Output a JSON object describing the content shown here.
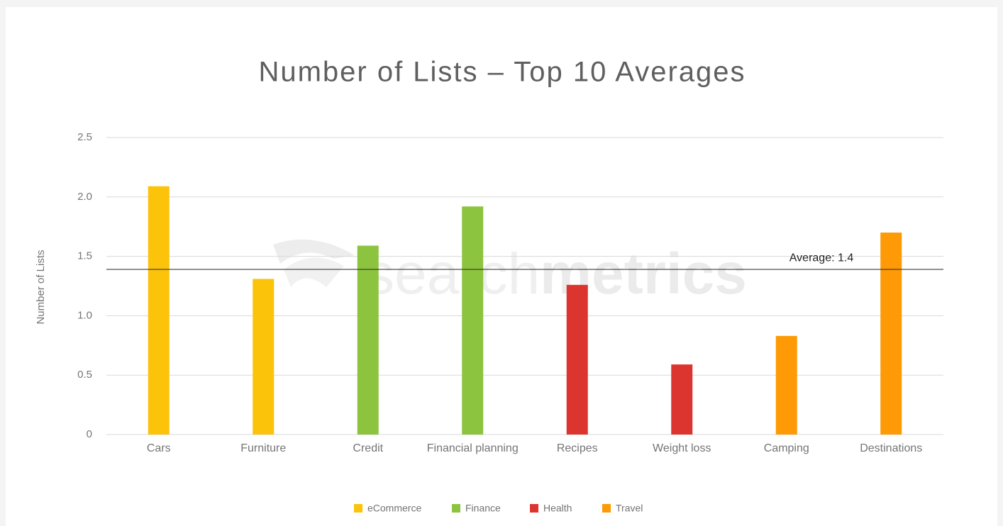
{
  "chart_data": {
    "type": "bar",
    "title": "Number of Lists – Top 10 Averages",
    "y_label": "Number of Lists",
    "watermark": {
      "left": "search",
      "right": "metrics"
    },
    "categories": [
      "Cars",
      "Furniture",
      "Credit",
      "Financial planning",
      "Recipes",
      "Weight loss",
      "Camping",
      "Destinations"
    ],
    "series": [
      {
        "name": "eCommerce",
        "color": "#fcc30b",
        "values": [
          2.09,
          1.31,
          null,
          null,
          null,
          null,
          null,
          null
        ]
      },
      {
        "name": "Finance",
        "color": "#8dc43f",
        "values": [
          null,
          null,
          1.59,
          1.92,
          null,
          null,
          null,
          null
        ]
      },
      {
        "name": "Health",
        "color": "#dc3530",
        "values": [
          null,
          null,
          null,
          null,
          1.26,
          0.59,
          null,
          null
        ]
      },
      {
        "name": "Travel",
        "color": "#fd9a05",
        "values": [
          null,
          null,
          null,
          null,
          null,
          null,
          0.83,
          1.7
        ]
      }
    ],
    "average": {
      "value": 1.39,
      "label": "Average: 1.4"
    },
    "ylim": [
      0,
      2.5
    ],
    "yticks": [
      0,
      0.5,
      {
        "value": 1,
        "label": "1.0"
      },
      1.5,
      {
        "value": 2,
        "label": "2.0"
      },
      2.5
    ],
    "grid": true,
    "legend": "bottom"
  }
}
